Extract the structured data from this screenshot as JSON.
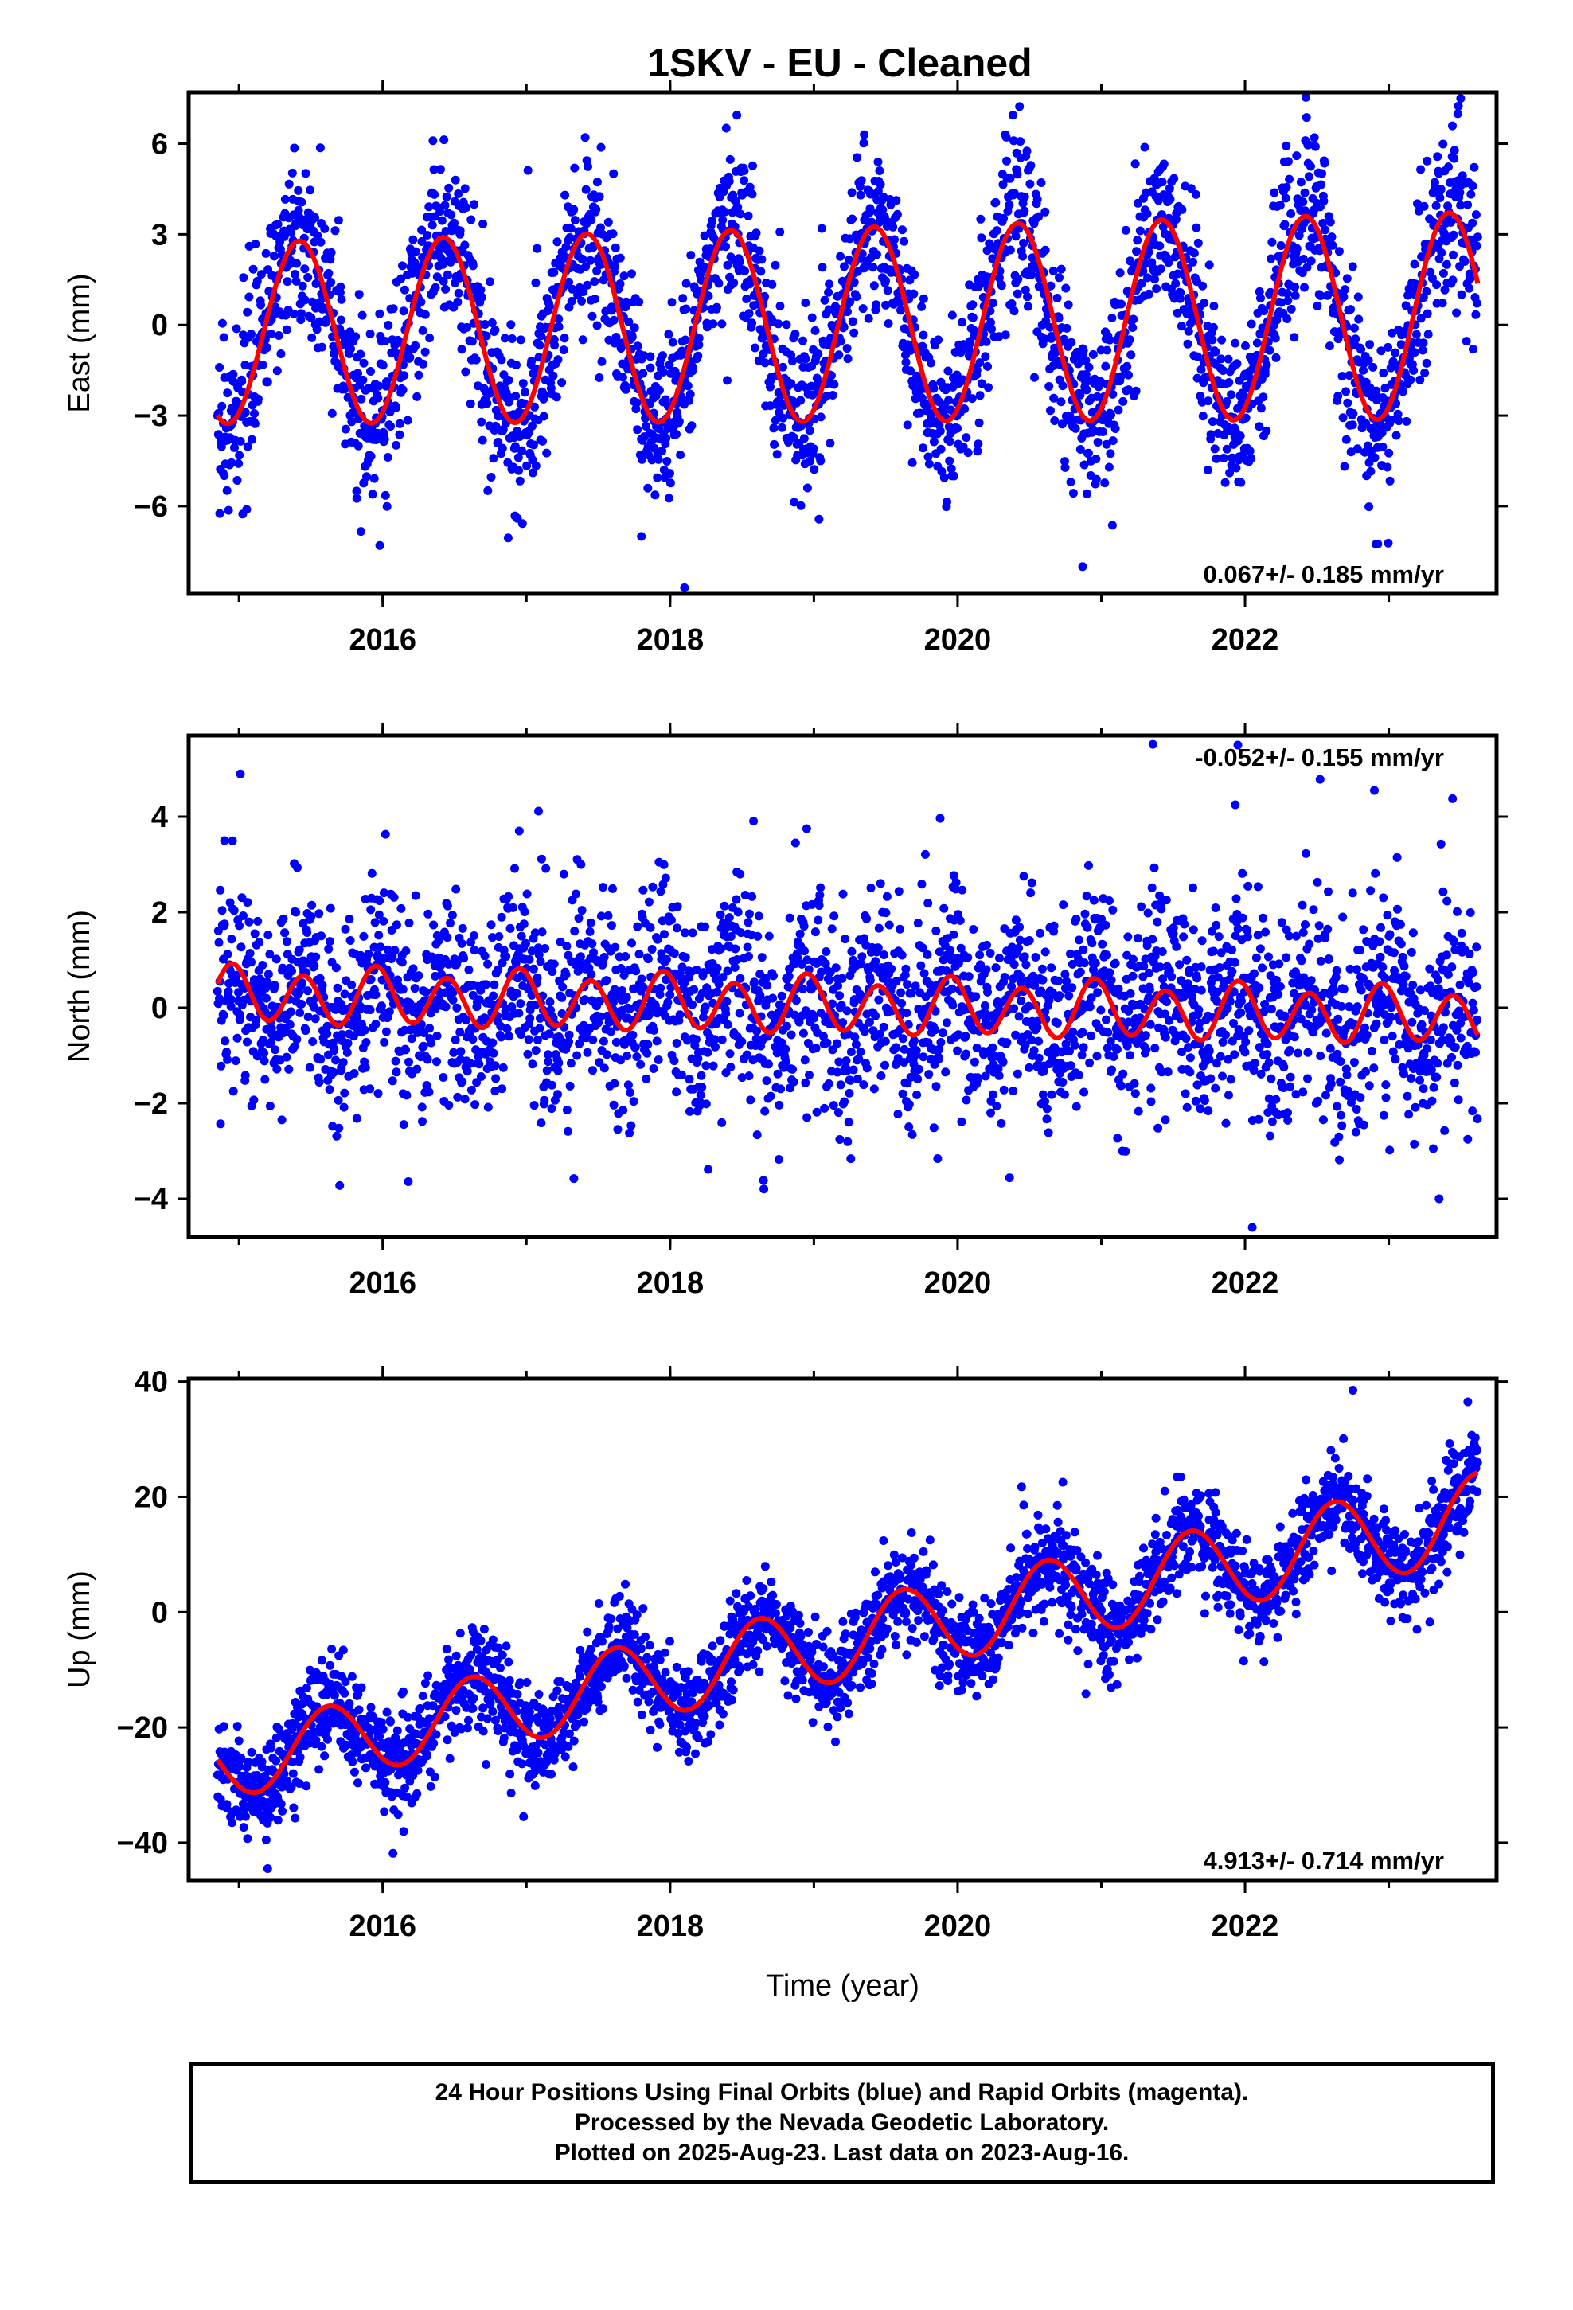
{
  "title": "1SKV  - EU - Cleaned",
  "colors": {
    "points": "#0000ff",
    "model": "#ff0000",
    "frame": "#000000"
  },
  "chart_data": [
    {
      "type": "scatter",
      "ylabel": "East (mm)",
      "xlabel": "",
      "xlim": [
        2014.65,
        2023.75
      ],
      "ylim": [
        -8.9,
        7.7
      ],
      "yticks": [
        -6,
        -3,
        0,
        3,
        6
      ],
      "xticks": [
        2016,
        2018,
        2020,
        2022
      ],
      "rate_label": "0.067+/- 0.185 mm/yr",
      "rate_position": "bottom-right",
      "series": [
        {
          "kind": "points",
          "count": 2850,
          "x_range": [
            2014.85,
            2023.62
          ],
          "scatter_std": 1.4,
          "notable_points": [
            [
              2023.5,
              7.5
            ],
            [
              2019.35,
              6.3
            ],
            [
              2016.35,
              6.1
            ],
            [
              2018.1,
              -8.7
            ],
            [
              2017.8,
              -7.0
            ],
            [
              2020.87,
              -8.0
            ],
            [
              2015.98,
              -7.3
            ]
          ]
        },
        {
          "kind": "model",
          "offset": 0.0,
          "rate": 0.067,
          "epoch": 2019.0,
          "annual_amplitude": 3.2,
          "annual_peak": 2015.42,
          "amplitude_trend": 0.05,
          "semiannual_amplitude": 0.0,
          "semiannual_peak": 0.0
        }
      ]
    },
    {
      "type": "scatter",
      "ylabel": "North (mm)",
      "xlabel": "",
      "xlim": [
        2014.65,
        2023.75
      ],
      "ylim": [
        -4.8,
        5.7
      ],
      "yticks": [
        -4,
        -2,
        0,
        2,
        4
      ],
      "xticks": [
        2016,
        2018,
        2020,
        2022
      ],
      "rate_label": "-0.052+/- 0.155 mm/yr",
      "rate_position": "top-right",
      "series": [
        {
          "kind": "points",
          "count": 2850,
          "x_range": [
            2014.85,
            2023.62
          ],
          "scatter_std": 1.05,
          "notable_points": [
            [
              2014.9,
              3.5
            ],
            [
              2016.95,
              3.7
            ],
            [
              2018.95,
              3.75
            ],
            [
              2022.9,
              4.55
            ],
            [
              2021.95,
              5.5
            ],
            [
              2022.05,
              -4.6
            ],
            [
              2023.35,
              -4.0
            ]
          ]
        },
        {
          "kind": "model",
          "offset": 0.05,
          "rate": -0.052,
          "epoch": 2019.0,
          "annual_amplitude": 0.12,
          "annual_peak": 2015.0,
          "amplitude_trend": 0.0,
          "semiannual_amplitude": 0.55,
          "semiannual_peak": 2014.95
        }
      ]
    },
    {
      "type": "scatter",
      "ylabel": "Up (mm)",
      "xlabel": "Time (year)",
      "xlim": [
        2014.65,
        2023.75
      ],
      "ylim": [
        -46.5,
        40.5
      ],
      "yticks": [
        -40,
        -20,
        0,
        20,
        40
      ],
      "xticks": [
        2016,
        2018,
        2020,
        2022
      ],
      "rate_label": "4.913+/- 0.714 mm/yr",
      "rate_position": "bottom-right",
      "series": [
        {
          "kind": "points",
          "count": 2850,
          "x_range": [
            2014.85,
            2023.62
          ],
          "scatter_std": 4.2,
          "notable_points": [
            [
              2022.75,
              38.5
            ],
            [
              2023.55,
              36.5
            ],
            [
              2015.2,
              -44.5
            ],
            [
              2016.98,
              -35.5
            ],
            [
              2019.15,
              -22.5
            ]
          ]
        },
        {
          "kind": "model",
          "offset": -6.0,
          "rate": 4.913,
          "epoch": 2019.0,
          "annual_amplitude": 6.8,
          "annual_peak": 2015.62,
          "amplitude_trend": 0.15,
          "semiannual_amplitude": 0.0,
          "semiannual_peak": 0.0
        }
      ]
    }
  ],
  "footer": {
    "line1": "24 Hour Positions Using Final Orbits (blue) and Rapid Orbits (magenta).",
    "line2": "Processed by the Nevada Geodetic Laboratory.",
    "line3": "Plotted on 2025-Aug-23. Last data on 2023-Aug-16."
  }
}
